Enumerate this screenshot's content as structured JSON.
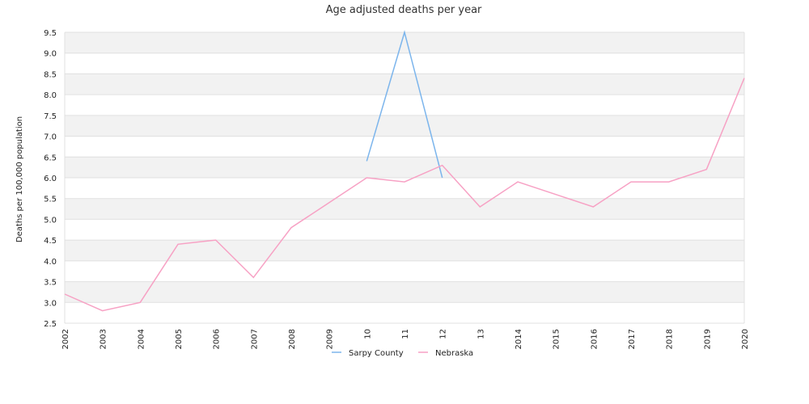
{
  "chart_data": {
    "type": "line",
    "title": "Age adjusted deaths per year",
    "xlabel": "",
    "ylabel": "Deaths per 100,000 population",
    "categories": [
      "2002",
      "2003",
      "2004",
      "2005",
      "2006",
      "2007",
      "2008",
      "2009",
      "10",
      "11",
      "12",
      "13",
      "2014",
      "2015",
      "2016",
      "2017",
      "2018",
      "2019",
      "2020"
    ],
    "ylim": [
      2.5,
      9.5
    ],
    "yticks": [
      "2.5",
      "3.0",
      "3.5",
      "4.0",
      "4.5",
      "5.0",
      "5.5",
      "6.0",
      "6.5",
      "7.0",
      "7.5",
      "8.0",
      "8.5",
      "9.0",
      "9.5"
    ],
    "grid": true,
    "legend_position": "bottom-center",
    "series": [
      {
        "name": "Sarpy County",
        "color": "#7cb5ec",
        "values": [
          null,
          null,
          null,
          null,
          null,
          null,
          null,
          null,
          6.4,
          9.5,
          6.0,
          null,
          null,
          null,
          null,
          null,
          null,
          null,
          null
        ]
      },
      {
        "name": "Nebraska",
        "color": "#f7a1c4",
        "values": [
          3.2,
          2.8,
          3.0,
          4.4,
          4.5,
          3.6,
          4.8,
          5.4,
          6.0,
          5.9,
          6.3,
          5.3,
          5.9,
          5.6,
          5.3,
          5.9,
          5.9,
          6.2,
          8.4
        ]
      }
    ]
  }
}
